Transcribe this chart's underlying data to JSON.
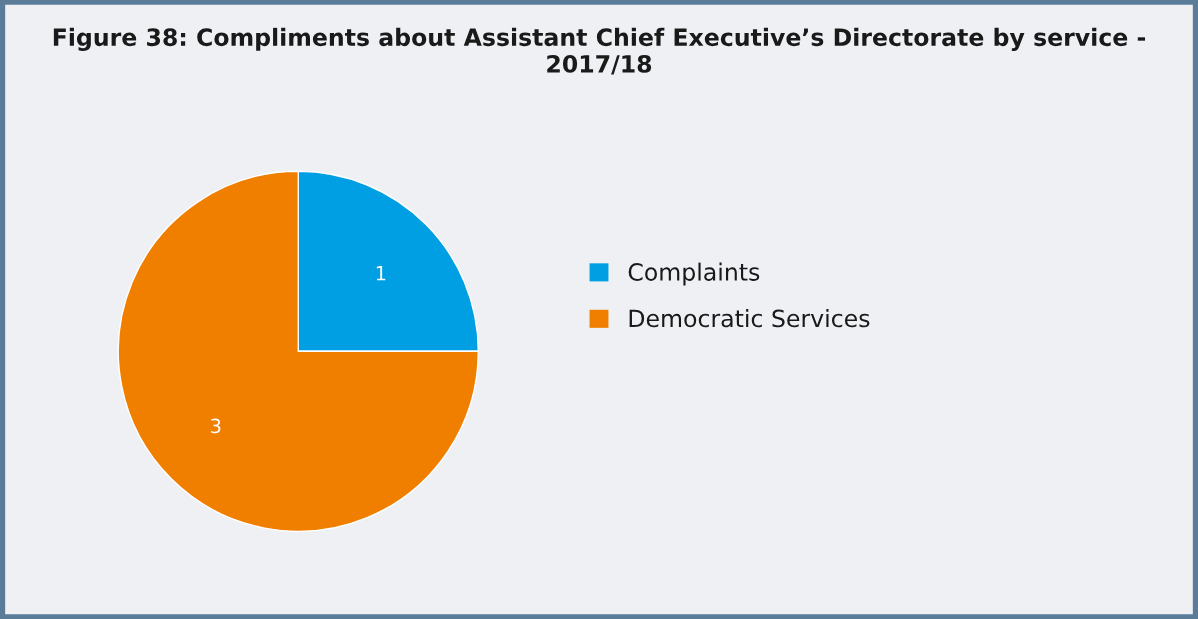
{
  "chart_data": {
    "type": "pie",
    "title": "Figure 38: Compliments about Assistant Chief Executive’s Directorate by service - 2017/18",
    "categories": [
      "Complaints",
      "Democratic Services"
    ],
    "values": [
      1,
      3
    ],
    "colors": [
      "#009fe3",
      "#f07f00"
    ],
    "data_labels": true,
    "legend": "right"
  }
}
